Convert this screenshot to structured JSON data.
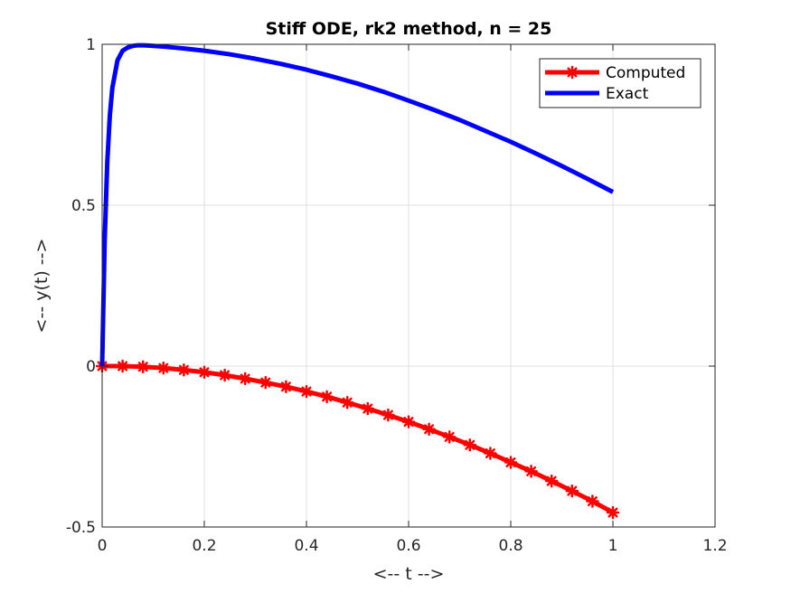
{
  "chart_data": {
    "type": "line",
    "title": "Stiff ODE, rk2 method, n = 25",
    "xlabel": "<-- t -->",
    "ylabel": "<-- y(t) -->",
    "xlim": [
      0,
      1.2
    ],
    "ylim": [
      -0.5,
      1
    ],
    "xticks": [
      0,
      0.2,
      0.4,
      0.6,
      0.8,
      1,
      1.2
    ],
    "yticks": [
      -0.5,
      0,
      0.5,
      1
    ],
    "xtick_labels": [
      "0",
      "0.2",
      "0.4",
      "0.6",
      "0.8",
      "1",
      "1.2"
    ],
    "ytick_labels": [
      "-0.5",
      "0",
      "0.5",
      "1"
    ],
    "grid": true,
    "legend_position": "top-right",
    "series": [
      {
        "name": "Computed",
        "color": "#ff0000",
        "marker": "asterisk",
        "x": [
          0,
          0.04,
          0.08,
          0.12,
          0.16,
          0.2,
          0.24,
          0.28,
          0.32,
          0.36,
          0.4,
          0.44,
          0.48,
          0.52,
          0.56,
          0.6,
          0.64,
          0.68,
          0.72,
          0.76,
          0.8,
          0.84,
          0.88,
          0.92,
          0.96,
          1.0
        ],
        "y": [
          0,
          0.0,
          -0.002,
          -0.006,
          -0.012,
          -0.019,
          -0.028,
          -0.039,
          -0.051,
          -0.064,
          -0.079,
          -0.095,
          -0.113,
          -0.132,
          -0.152,
          -0.173,
          -0.196,
          -0.22,
          -0.245,
          -0.271,
          -0.299,
          -0.327,
          -0.357,
          -0.388,
          -0.42,
          -0.455
        ]
      },
      {
        "name": "Exact",
        "color": "#0000ff",
        "marker": "none",
        "x": [
          0,
          0.005,
          0.01,
          0.015,
          0.02,
          0.03,
          0.04,
          0.05,
          0.06,
          0.07,
          0.08,
          0.09,
          0.1,
          0.12,
          0.14,
          0.16,
          0.2,
          0.25,
          0.3,
          0.35,
          0.4,
          0.45,
          0.5,
          0.55,
          0.6,
          0.65,
          0.7,
          0.75,
          0.8,
          0.85,
          0.9,
          0.95,
          1.0
        ],
        "y": [
          0,
          0.393,
          0.632,
          0.777,
          0.865,
          0.95,
          0.98,
          0.99,
          0.995,
          0.997,
          0.997,
          0.996,
          0.995,
          0.993,
          0.99,
          0.987,
          0.98,
          0.969,
          0.955,
          0.939,
          0.921,
          0.9,
          0.878,
          0.853,
          0.825,
          0.796,
          0.765,
          0.731,
          0.697,
          0.66,
          0.622,
          0.582,
          0.541
        ]
      }
    ]
  }
}
